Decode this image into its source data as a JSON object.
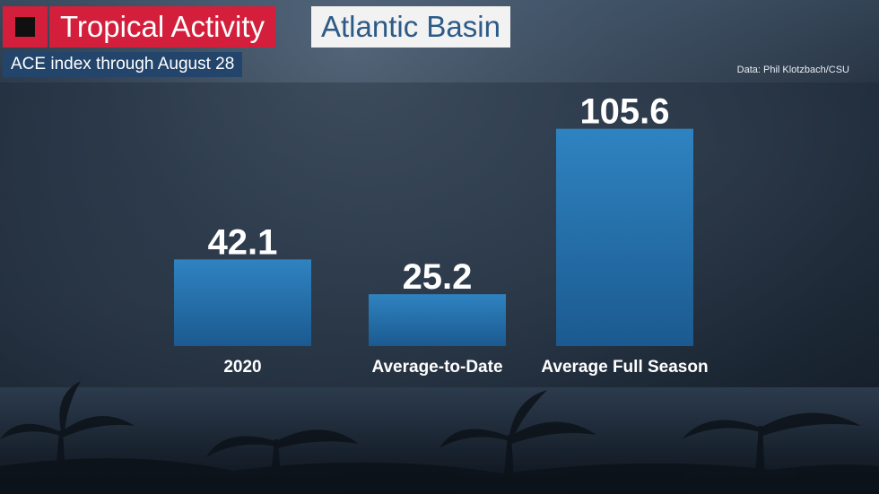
{
  "header": {
    "title": "Tropical Activity",
    "region": "Atlantic Basin",
    "subtitle": "ACE index through August 28",
    "source": "Data: Phil Klotzbach/CSU"
  },
  "colors": {
    "accent_red": "#d31f3b",
    "title_blue": "#2d5a86",
    "subtitle_bg": "#23456b",
    "bar_top": "#2f83c1",
    "bar_bottom": "#1b5a90"
  },
  "chart_data": {
    "type": "bar",
    "title": "ACE index through August 28",
    "categories": [
      "2020",
      "Average-to-Date",
      "Average Full Season"
    ],
    "values": [
      42.1,
      25.2,
      105.6
    ],
    "data_labels": [
      "42.1",
      "25.2",
      "105.6"
    ],
    "xlabel": "",
    "ylabel": "",
    "ylim": [
      0,
      120
    ],
    "grid": false,
    "legend": "none"
  }
}
